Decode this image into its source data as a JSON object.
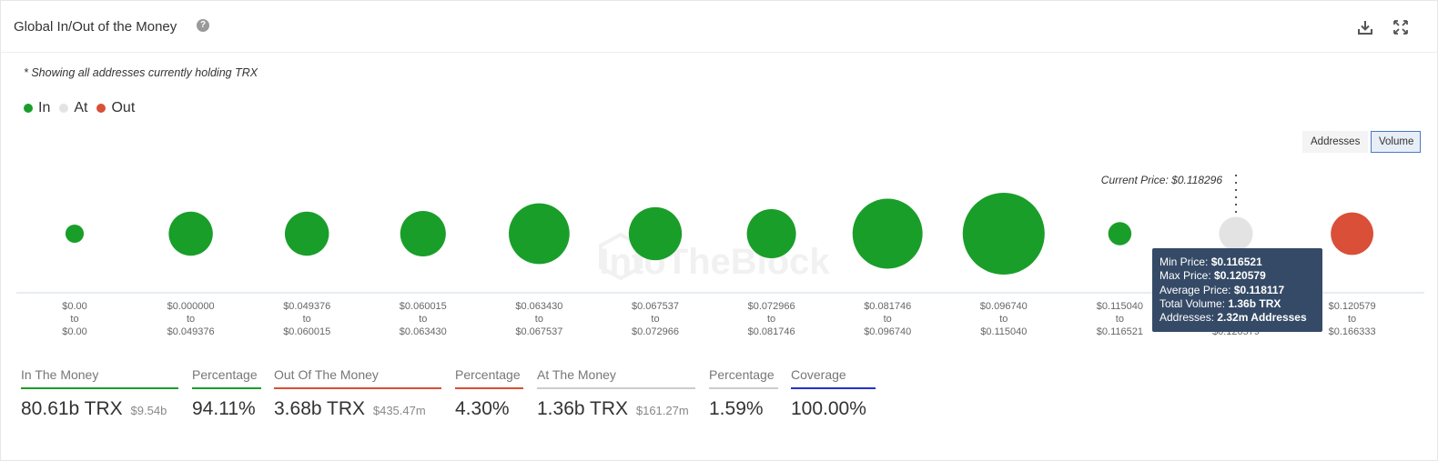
{
  "header": {
    "title": "Global In/Out of the Money",
    "help_icon": "question-circle-icon",
    "download_icon": "download-icon",
    "expand_icon": "expand-icon"
  },
  "note": "* Showing all addresses currently holding TRX",
  "legend": [
    {
      "label": "In",
      "color": "#1a9e2a"
    },
    {
      "label": "At",
      "color": "#e3e3e3"
    },
    {
      "label": "Out",
      "color": "#d94f38"
    }
  ],
  "toggles": {
    "addresses": "Addresses",
    "volume": "Volume",
    "active": "Volume"
  },
  "watermark": "IntoTheBlock",
  "chart_data": {
    "type": "scatter",
    "title": "",
    "current_price_label": "Current Price: $0.118296",
    "current_price_index": 10,
    "size_metric": "volume",
    "ranges": [
      {
        "from": "$0.00",
        "to": "$0.00",
        "status": "In",
        "relative_volume": 0.05
      },
      {
        "from": "$0.000000",
        "to": "$0.049376",
        "status": "In",
        "relative_volume": 0.29
      },
      {
        "from": "$0.049376",
        "to": "$0.060015",
        "status": "In",
        "relative_volume": 0.29
      },
      {
        "from": "$0.060015",
        "to": "$0.063430",
        "status": "In",
        "relative_volume": 0.31
      },
      {
        "from": "$0.063430",
        "to": "$0.067537",
        "status": "In",
        "relative_volume": 0.55
      },
      {
        "from": "$0.067537",
        "to": "$0.072966",
        "status": "In",
        "relative_volume": 0.42
      },
      {
        "from": "$0.072966",
        "to": "$0.081746",
        "status": "In",
        "relative_volume": 0.36
      },
      {
        "from": "$0.081746",
        "to": "$0.096740",
        "status": "In",
        "relative_volume": 0.73
      },
      {
        "from": "$0.096740",
        "to": "$0.115040",
        "status": "In",
        "relative_volume": 1.0
      },
      {
        "from": "$0.115040",
        "to": "$0.116521",
        "status": "In",
        "relative_volume": 0.08
      },
      {
        "from": "$0.116521",
        "to": "$0.120579",
        "status": "At",
        "relative_volume": 0.17
      },
      {
        "from": "$0.120579",
        "to": "$0.166333",
        "status": "Out",
        "relative_volume": 0.27
      }
    ],
    "tooltip": {
      "rows": [
        {
          "label": "Min Price: ",
          "value": "$0.116521"
        },
        {
          "label": "Max Price: ",
          "value": "$0.120579"
        },
        {
          "label": "Average Price: ",
          "value": "$0.118117"
        },
        {
          "label": "Total Volume: ",
          "value": "1.36b TRX"
        },
        {
          "label": "Addresses: ",
          "value": "2.32m Addresses"
        }
      ]
    }
  },
  "stats": {
    "in_label": "In The Money",
    "in_value": "80.61b TRX",
    "in_usd": "$9.54b",
    "in_pct_label": "Percentage",
    "in_pct": "94.11%",
    "out_label": "Out Of The Money",
    "out_value": "3.68b TRX",
    "out_usd": "$435.47m",
    "out_pct_label": "Percentage",
    "out_pct": "4.30%",
    "at_label": "At The Money",
    "at_value": "1.36b TRX",
    "at_usd": "$161.27m",
    "at_pct_label": "Percentage",
    "at_pct": "1.59%",
    "coverage_label": "Coverage",
    "coverage": "100.00%",
    "colors": {
      "in": "#1a9e2a",
      "out": "#d94f38",
      "at": "#cccccc",
      "pct": "#aaaaaa",
      "coverage": "#2233cc"
    }
  }
}
